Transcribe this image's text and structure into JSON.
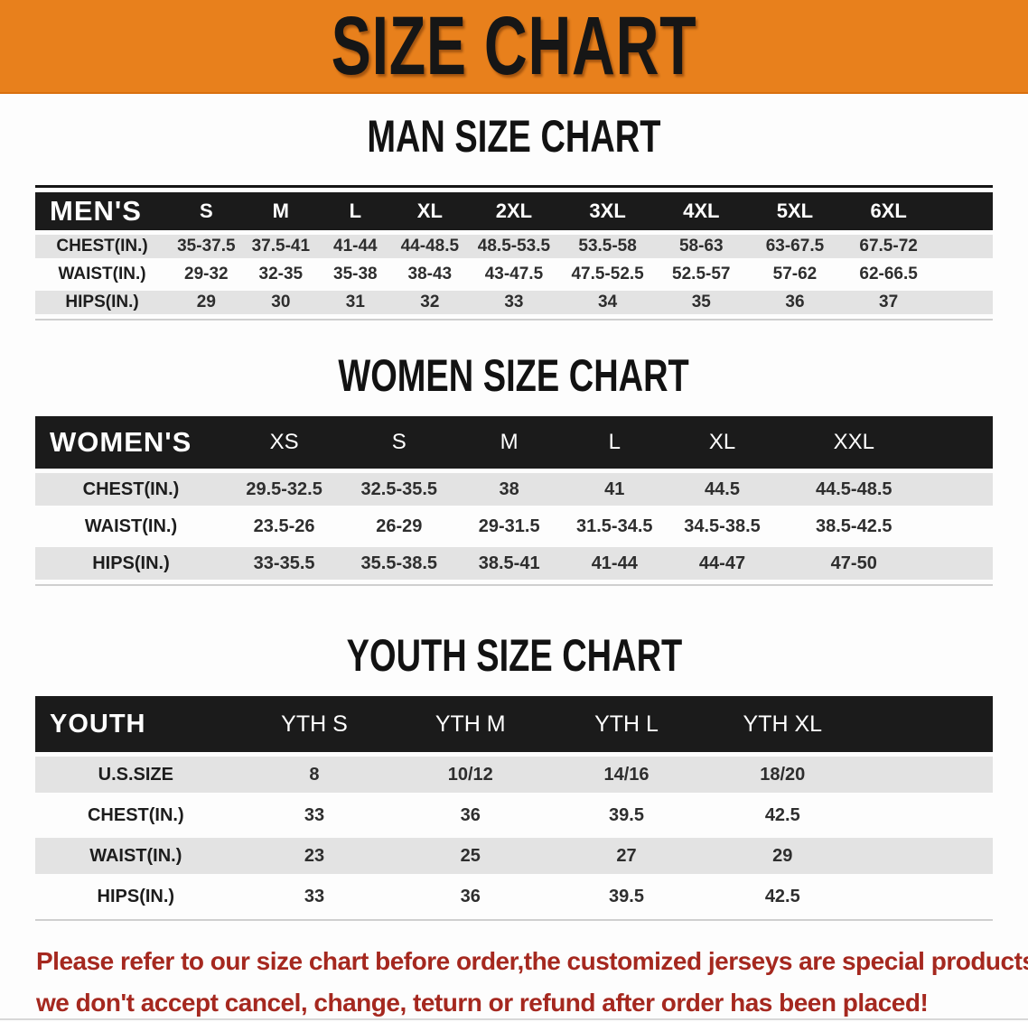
{
  "banner": {
    "title": "SIZE CHART"
  },
  "sections": [
    {
      "heading": "MAN SIZE CHART",
      "table": {
        "label": "MEN'S",
        "columns": [
          "S",
          "M",
          "L",
          "XL",
          "2XL",
          "3XL",
          "4XL",
          "5XL",
          "6XL"
        ],
        "rows": [
          {
            "label": "CHEST(IN.)",
            "values": [
              "35-37.5",
              "37.5-41",
              "41-44",
              "44-48.5",
              "48.5-53.5",
              "53.5-58",
              "58-63",
              "63-67.5",
              "67.5-72"
            ]
          },
          {
            "label": "WAIST(IN.)",
            "values": [
              "29-32",
              "32-35",
              "35-38",
              "38-43",
              "43-47.5",
              "47.5-52.5",
              "52.5-57",
              "57-62",
              "62-66.5"
            ]
          },
          {
            "label": "HIPS(IN.)",
            "values": [
              "29",
              "30",
              "31",
              "32",
              "33",
              "34",
              "35",
              "36",
              "37"
            ]
          }
        ]
      }
    },
    {
      "heading": "WOMEN SIZE CHART",
      "table": {
        "label": "WOMEN'S",
        "columns": [
          "XS",
          "S",
          "M",
          "L",
          "XL",
          "XXL"
        ],
        "rows": [
          {
            "label": "CHEST(IN.)",
            "values": [
              "29.5-32.5",
              "32.5-35.5",
              "38",
              "41",
              "44.5",
              "44.5-48.5"
            ]
          },
          {
            "label": "WAIST(IN.)",
            "values": [
              "23.5-26",
              "26-29",
              "29-31.5",
              "31.5-34.5",
              "34.5-38.5",
              "38.5-42.5"
            ]
          },
          {
            "label": "HIPS(IN.)",
            "values": [
              "33-35.5",
              "35.5-38.5",
              "38.5-41",
              "41-44",
              "44-47",
              "47-50"
            ]
          }
        ]
      }
    },
    {
      "heading": "YOUTH SIZE CHART",
      "table": {
        "label": "YOUTH",
        "columns": [
          "YTH S",
          "YTH M",
          "YTH L",
          "YTH XL"
        ],
        "rows": [
          {
            "label": "U.S.SIZE",
            "values": [
              "8",
              "10/12",
              "14/16",
              "18/20"
            ]
          },
          {
            "label": "CHEST(IN.)",
            "values": [
              "33",
              "36",
              "39.5",
              "42.5"
            ]
          },
          {
            "label": "WAIST(IN.)",
            "values": [
              "23",
              "25",
              "27",
              "29"
            ]
          },
          {
            "label": "HIPS(IN.)",
            "values": [
              "33",
              "36",
              "39.5",
              "42.5"
            ]
          }
        ]
      }
    }
  ],
  "notice": {
    "line1": "Please refer to our size chart before order,the customized jerseys are special products,",
    "line2": "we don't accept cancel, change, teturn or refund after order has been placed!"
  },
  "colors": {
    "banner_bg": "#E8801C",
    "header_bar": "#1B1B1B",
    "shaded_row": "#E3E3E3",
    "notice_red": "#A5281F"
  }
}
